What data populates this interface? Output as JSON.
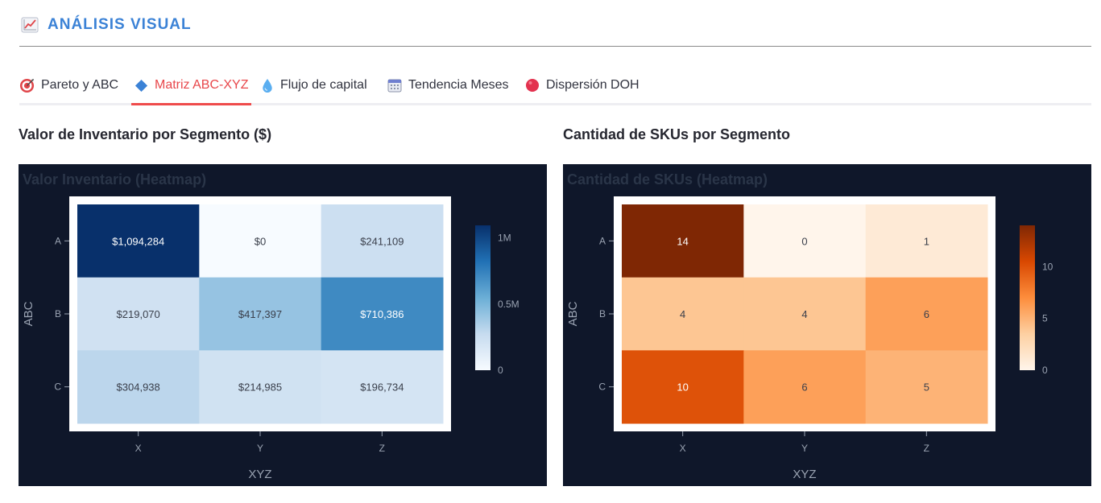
{
  "header": {
    "title": "ANÁLISIS VISUAL",
    "icon": "chart-increasing-icon"
  },
  "tabs": [
    {
      "label": "Pareto y ABC",
      "icon": "target-icon",
      "active": false
    },
    {
      "label": "Matriz ABC-XYZ",
      "icon": "blue-diamond-icon",
      "active": true
    },
    {
      "label": "Flujo de capital",
      "icon": "droplet-icon",
      "active": false
    },
    {
      "label": "Tendencia Meses",
      "icon": "calendar-icon",
      "active": false
    },
    {
      "label": "Dispersión DOH",
      "icon": "red-circle-icon",
      "active": false
    }
  ],
  "sections": {
    "left_title": "Valor de Inventario por Segmento ($)",
    "right_title": "Cantidad de SKUs por Segmento"
  },
  "colors": {
    "accent": "#3b82d6",
    "active_tab": "#e8474b",
    "panel_bg": "#0f172a",
    "blues_scale": [
      "#f7fbff",
      "#c6dbef",
      "#6baed6",
      "#2171b5",
      "#08306b"
    ],
    "oranges_scale": [
      "#fff5eb",
      "#fdd0a2",
      "#fd8d3c",
      "#d94801",
      "#7f2704"
    ]
  },
  "chart_data": [
    {
      "type": "heatmap",
      "title": "Valor Inventario (Heatmap)",
      "xlabel": "XYZ",
      "ylabel": "ABC",
      "x": [
        "X",
        "Y",
        "Z"
      ],
      "y": [
        "A",
        "B",
        "C"
      ],
      "values": [
        [
          1094284,
          0,
          241109
        ],
        [
          219070,
          417397,
          710386
        ],
        [
          304938,
          214985,
          196734
        ]
      ],
      "labels": [
        [
          "$1,094,284",
          "$0",
          "$241,109"
        ],
        [
          "$219,070",
          "$417,397",
          "$710,386"
        ],
        [
          "$304,938",
          "$214,985",
          "$196,734"
        ]
      ],
      "colorscale": "Blues",
      "zmin": 0,
      "zmax": 1094284,
      "colorbar_ticks": [
        {
          "value": 0,
          "label": "0"
        },
        {
          "value": 500000,
          "label": "0.5M"
        },
        {
          "value": 1000000,
          "label": "1M"
        }
      ]
    },
    {
      "type": "heatmap",
      "title": "Cantidad de SKUs (Heatmap)",
      "xlabel": "XYZ",
      "ylabel": "ABC",
      "x": [
        "X",
        "Y",
        "Z"
      ],
      "y": [
        "A",
        "B",
        "C"
      ],
      "values": [
        [
          14,
          0,
          1
        ],
        [
          4,
          4,
          6
        ],
        [
          10,
          6,
          5
        ]
      ],
      "labels": [
        [
          "14",
          "0",
          "1"
        ],
        [
          "4",
          "4",
          "6"
        ],
        [
          "10",
          "6",
          "5"
        ]
      ],
      "colorscale": "Oranges",
      "zmin": 0,
      "zmax": 14,
      "colorbar_ticks": [
        {
          "value": 0,
          "label": "0"
        },
        {
          "value": 5,
          "label": "5"
        },
        {
          "value": 10,
          "label": "10"
        }
      ]
    }
  ]
}
